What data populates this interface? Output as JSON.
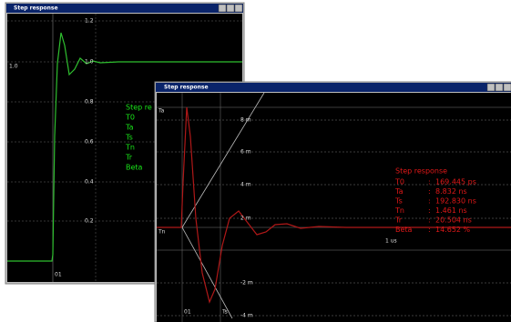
{
  "window_back": {
    "title": "Step response",
    "y_labels": [
      "1.2",
      "1.0",
      "0.8",
      "0.6",
      "0.4",
      "0.2"
    ],
    "level_label": "1.0",
    "x_label": "01",
    "legend": [
      "Step re",
      "T0",
      "Ta",
      "Ts",
      "Tn",
      "Tr",
      "Beta"
    ]
  },
  "window_front": {
    "title": "Step response",
    "y_labels": [
      "8 m",
      "6 m",
      "4 m",
      "2 m",
      "-2 m",
      "-4 m"
    ],
    "marker_labels": [
      "Ta",
      "Tn",
      "1 us",
      "01",
      "Ts"
    ],
    "results_title": "Step response",
    "results": [
      [
        "T0",
        ":",
        "169.445 ps"
      ],
      [
        "Ta",
        ":",
        "8.832 ns"
      ],
      [
        "Ts",
        ":",
        "192.830 ns"
      ],
      [
        "Tn",
        ":",
        "1.461 ns"
      ],
      [
        "Tr",
        ":",
        "20.504 ns"
      ],
      [
        "Beta",
        ":",
        "14.652 %"
      ]
    ]
  }
}
